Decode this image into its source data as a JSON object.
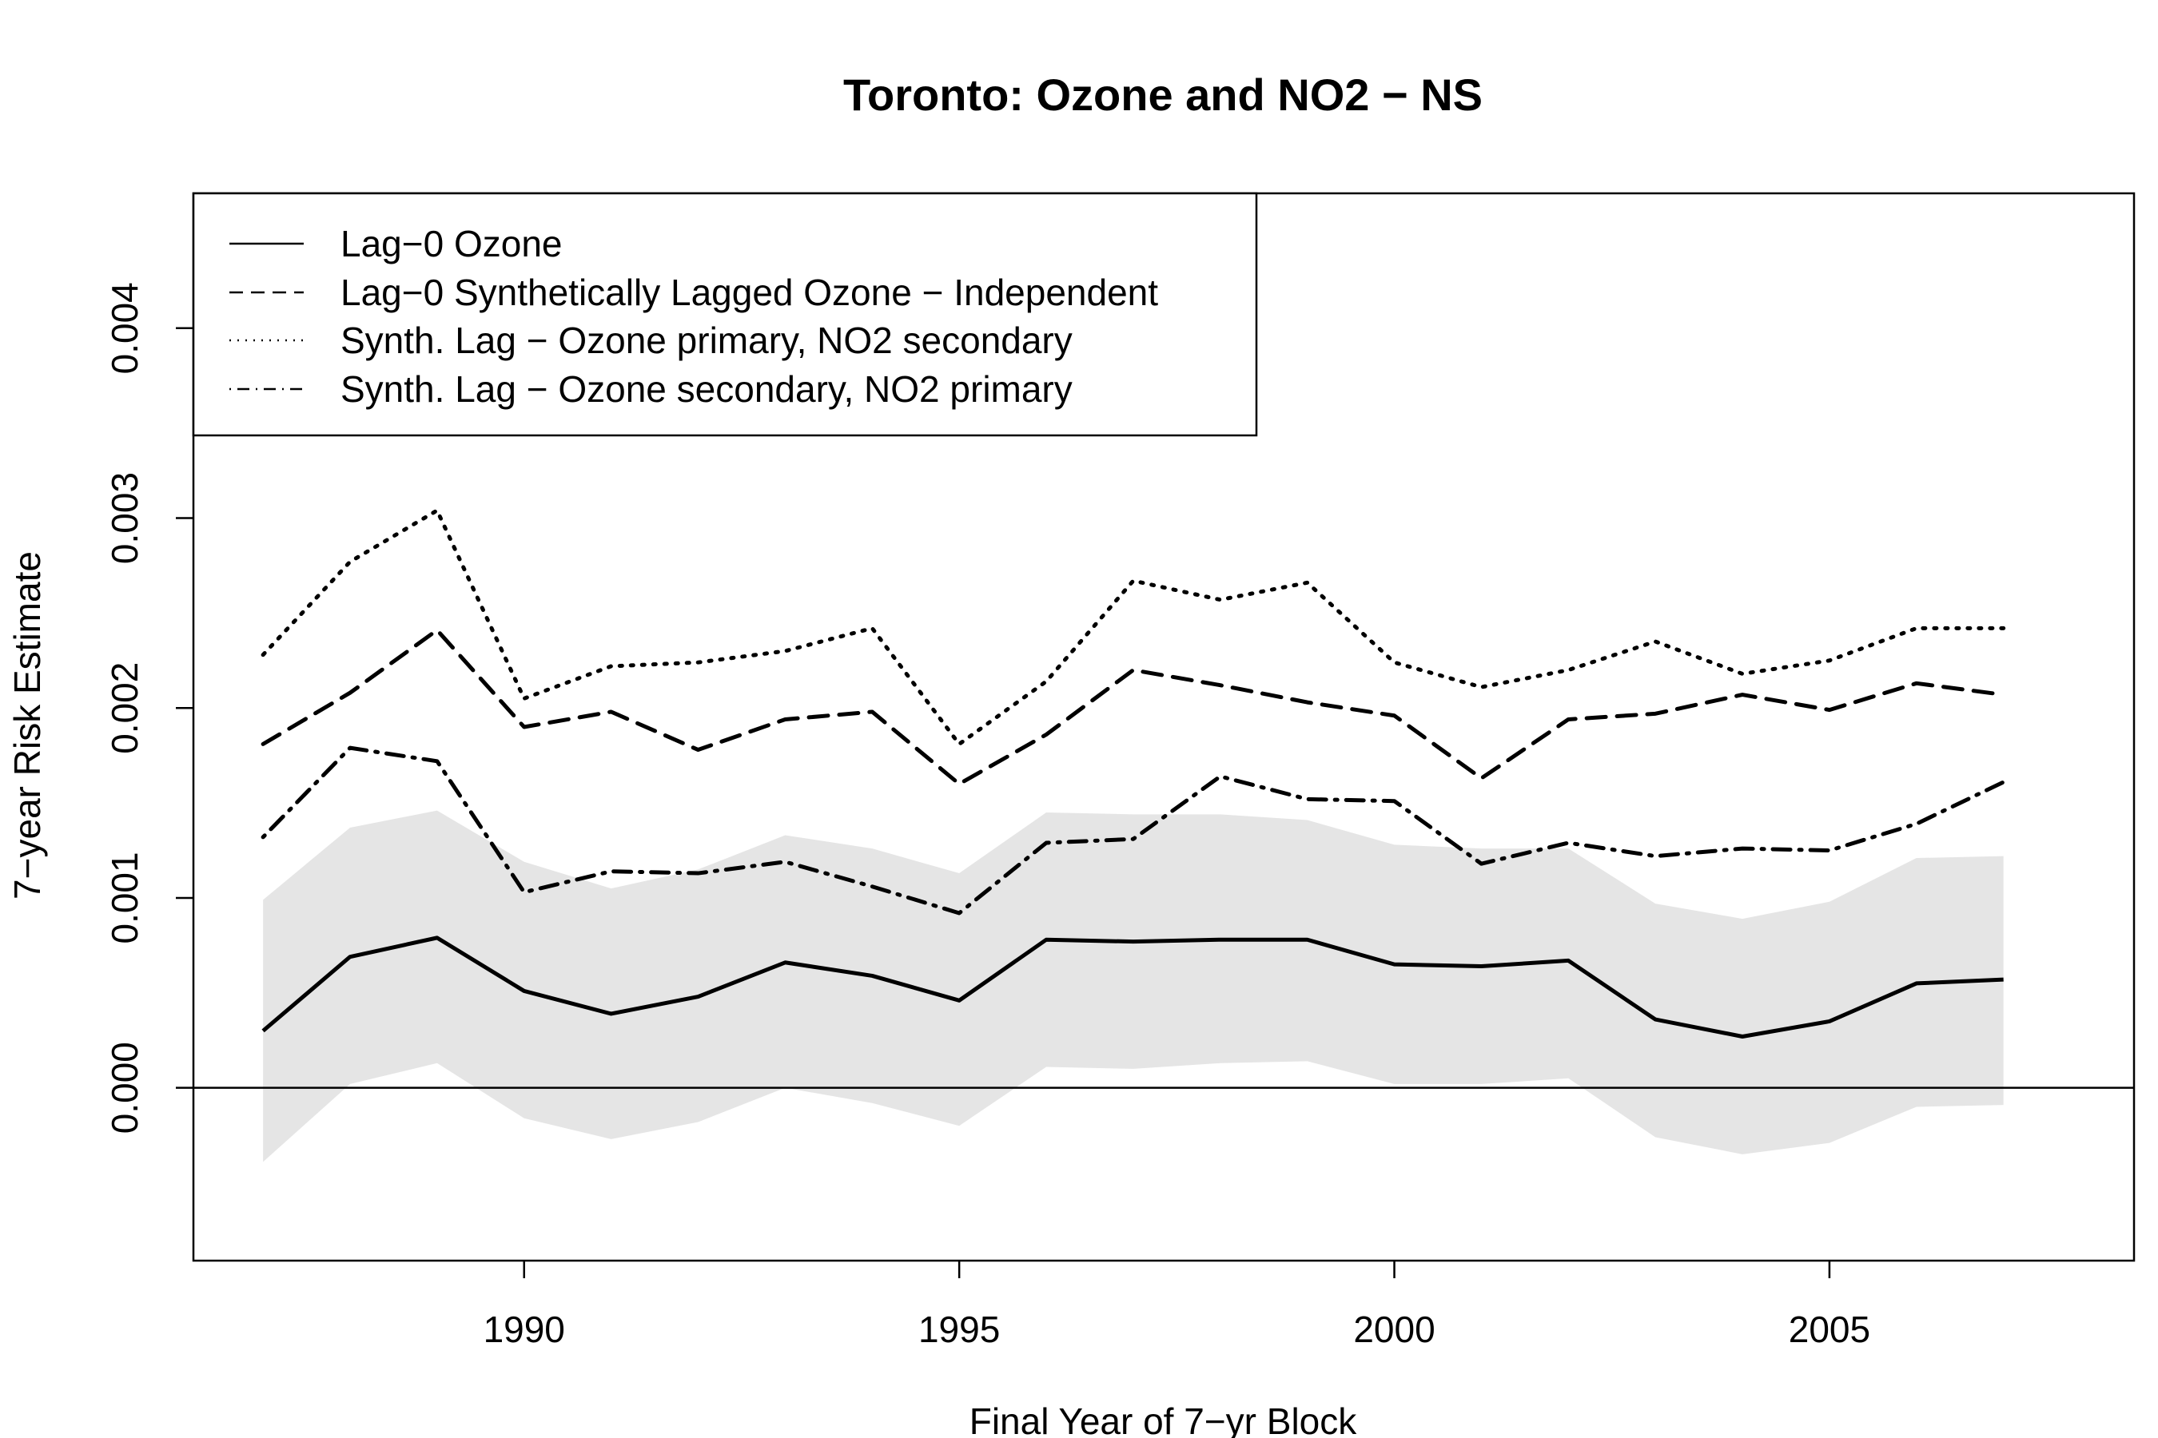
{
  "chart_data": {
    "type": "line",
    "title": "Toronto: Ozone and NO2 − NS",
    "xlabel": "Final Year of 7−yr Block",
    "ylabel": "7−year Risk Estimate",
    "xlim": [
      1986.2,
      2008.5
    ],
    "ylim": [
      -0.00091,
      0.00471
    ],
    "xticks": [
      1990,
      1995,
      2000,
      2005
    ],
    "xtick_labels": [
      "1990",
      "1995",
      "2000",
      "2005"
    ],
    "yticks": [
      0.0,
      0.001,
      0.002,
      0.003,
      0.004
    ],
    "ytick_labels": [
      "0.000",
      "0.001",
      "0.002",
      "0.003",
      "0.004"
    ],
    "grid": false,
    "legend_position": "top-left",
    "reference_line_y": 0,
    "x": [
      1987,
      1988,
      1989,
      1990,
      1991,
      1992,
      1993,
      1994,
      1995,
      1996,
      1997,
      1998,
      1999,
      2000,
      2001,
      2002,
      2003,
      2004,
      2005,
      2006,
      2007
    ],
    "series": [
      {
        "name": "Lag−0 Ozone",
        "linestyle": "solid",
        "values": [
          0.0003,
          0.00069,
          0.00079,
          0.00051,
          0.00039,
          0.00048,
          0.00066,
          0.00059,
          0.00046,
          0.00078,
          0.00077,
          0.00078,
          0.00078,
          0.00065,
          0.00064,
          0.00067,
          0.00036,
          0.00027,
          0.00035,
          0.00055,
          0.00057
        ]
      },
      {
        "name": "Lag−0 Synthetically Lagged Ozone − Independent",
        "linestyle": "dashed",
        "values": [
          0.00181,
          0.00208,
          0.00241,
          0.0019,
          0.00198,
          0.00178,
          0.00194,
          0.00198,
          0.0016,
          0.00186,
          0.0022,
          0.00212,
          0.00203,
          0.00196,
          0.00163,
          0.00194,
          0.00197,
          0.00207,
          0.00199,
          0.00213,
          0.00207
        ]
      },
      {
        "name": "Synth. Lag − Ozone primary, NO2 secondary",
        "linestyle": "dotted",
        "values": [
          0.00228,
          0.00277,
          0.00304,
          0.00205,
          0.00222,
          0.00224,
          0.0023,
          0.00242,
          0.00181,
          0.00214,
          0.00267,
          0.00257,
          0.00266,
          0.00224,
          0.00211,
          0.0022,
          0.00235,
          0.00218,
          0.00225,
          0.00242,
          0.00242
        ]
      },
      {
        "name": "Synth. Lag − Ozone secondary, NO2 primary",
        "linestyle": "dotdash",
        "values": [
          0.00132,
          0.00179,
          0.00172,
          0.00103,
          0.00114,
          0.00113,
          0.00119,
          0.00106,
          0.00092,
          0.00129,
          0.00131,
          0.00164,
          0.00152,
          0.00151,
          0.00118,
          0.00129,
          0.00122,
          0.00126,
          0.00125,
          0.00139,
          0.00161
        ]
      }
    ],
    "confidence_band": {
      "lower": [
        -0.00039,
        2e-05,
        0.00013,
        -0.00016,
        -0.00027,
        -0.00018,
        0.0,
        -8e-05,
        -0.0002,
        0.00011,
        0.0001,
        0.00013,
        0.00014,
        2e-05,
        2e-05,
        5e-05,
        -0.00026,
        -0.00035,
        -0.00029,
        -0.0001,
        -9e-05
      ],
      "upper": [
        0.00099,
        0.00137,
        0.00146,
        0.00119,
        0.00105,
        0.00115,
        0.00133,
        0.00126,
        0.00113,
        0.00145,
        0.00144,
        0.00144,
        0.00141,
        0.00128,
        0.00126,
        0.00126,
        0.00097,
        0.00089,
        0.00098,
        0.00121,
        0.00122
      ],
      "color": "#e5e5e5"
    }
  }
}
